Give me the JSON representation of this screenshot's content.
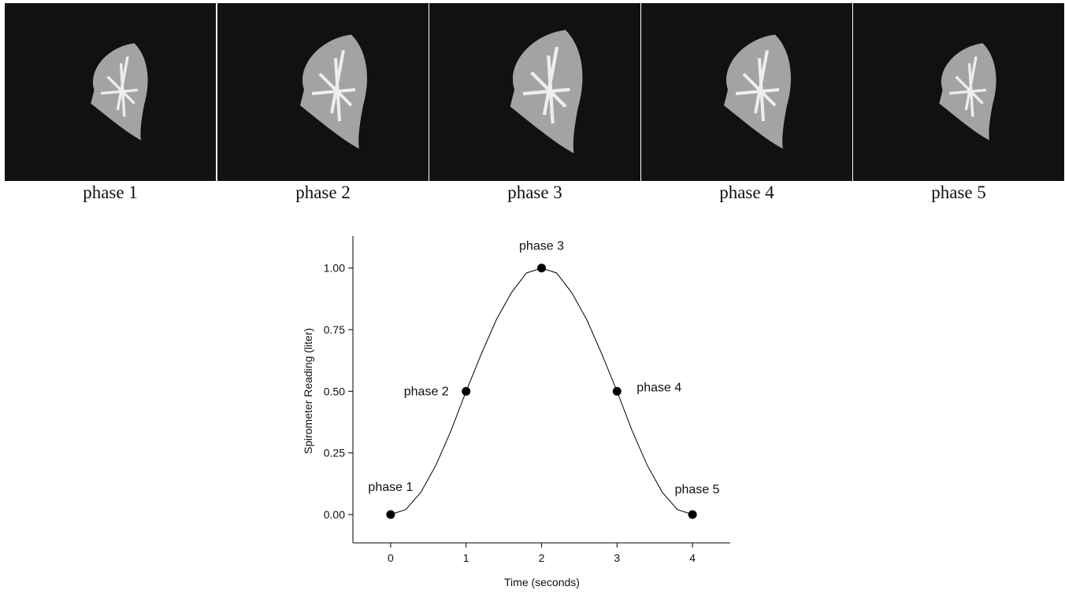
{
  "panels": [
    {
      "caption": "phase 1"
    },
    {
      "caption": "phase 2"
    },
    {
      "caption": "phase 3"
    },
    {
      "caption": "phase 4"
    },
    {
      "caption": "phase 5"
    }
  ],
  "chart_data": {
    "type": "line",
    "x_label": "Time (seconds)",
    "y_label": "Spirometer Reading (liter)",
    "xlim": [
      -0.5,
      4.5
    ],
    "xticks": [
      0,
      1,
      2,
      3,
      4
    ],
    "ylim": [
      -0.115,
      1.13
    ],
    "yticks": [
      {
        "value": 0,
        "label": "0.00"
      },
      {
        "value": 0.25,
        "label": "0.25"
      },
      {
        "value": 0.5,
        "label": "0.50"
      },
      {
        "value": 0.75,
        "label": "0.75"
      },
      {
        "value": 1,
        "label": "1.00"
      }
    ],
    "series": [
      {
        "color": "#000000",
        "x": [
          0,
          0.2,
          0.4,
          0.6,
          0.8,
          1,
          1.2,
          1.4,
          1.6,
          1.8,
          2,
          2.2,
          2.4,
          2.6,
          2.8,
          3,
          3.2,
          3.4,
          3.6,
          3.8,
          4
        ],
        "values": [
          0,
          0.02,
          0.09,
          0.2,
          0.34,
          0.5,
          0.65,
          0.79,
          0.9,
          0.98,
          1,
          0.98,
          0.9,
          0.79,
          0.65,
          0.5,
          0.34,
          0.2,
          0.09,
          0.02,
          0
        ]
      },
      {
        "color": "#000000",
        "x": [
          0,
          1,
          2,
          3,
          4
        ],
        "values": [
          0,
          0.5,
          1,
          0.5,
          0
        ],
        "labels": [
          "phase 1",
          "phase 2",
          "phase 3",
          "phase 4",
          "phase 5"
        ]
      }
    ]
  }
}
